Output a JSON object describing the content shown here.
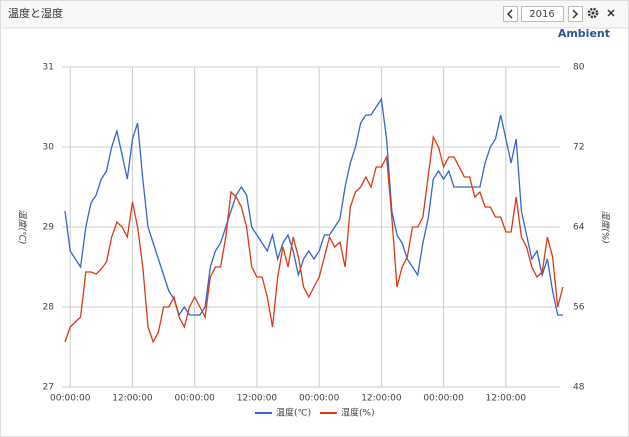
{
  "header": {
    "title": "温度と湿度",
    "year": "2016"
  },
  "brand": "Ambient",
  "chart_data": {
    "type": "line",
    "y_label": "温度(℃)",
    "y2_label": "湿度(%)",
    "x": [
      -1,
      0,
      1,
      2,
      3,
      4,
      5,
      6,
      7,
      8,
      9,
      10,
      11,
      12,
      13,
      14,
      15,
      16,
      17,
      18,
      19,
      20,
      21,
      22,
      23,
      24,
      25,
      26,
      27,
      28,
      29,
      30,
      31,
      32,
      33,
      34,
      35,
      36,
      37,
      38,
      39,
      40,
      41,
      42,
      43,
      44,
      45,
      46,
      47,
      48,
      49,
      50,
      51,
      52,
      53,
      54,
      55,
      56,
      57,
      58,
      59,
      60,
      61,
      62,
      63,
      64,
      65,
      66,
      67,
      68,
      69,
      70,
      71,
      72,
      73,
      74,
      75,
      76,
      77,
      78,
      79,
      80,
      81,
      82,
      83,
      84,
      85,
      86,
      87,
      88,
      89,
      90,
      91,
      92,
      93,
      94,
      95
    ],
    "xlim": [
      -1.2,
      95.4
    ],
    "xticks": [
      {
        "value": 0,
        "label": "00:00:00"
      },
      {
        "value": 12,
        "label": "12:00:00"
      },
      {
        "value": 24,
        "label": "00:00:00"
      },
      {
        "value": 36,
        "label": "12:00:00"
      },
      {
        "value": 48,
        "label": "00:00:00"
      },
      {
        "value": 60,
        "label": "12:00:00"
      },
      {
        "value": 72,
        "label": "00:00:00"
      },
      {
        "value": 84,
        "label": "12:00:00"
      }
    ],
    "ylim": [
      27,
      31
    ],
    "yticks": [
      27,
      28,
      29,
      30,
      31
    ],
    "y2lim": [
      48,
      80
    ],
    "y2ticks": [
      48,
      56,
      64,
      72,
      80
    ],
    "grid": true,
    "legend": "bottom",
    "series": [
      {
        "name": "温度(℃)",
        "color": "#3366cc",
        "values": [
          29.2,
          28.7,
          28.6,
          28.5,
          29.0,
          29.3,
          29.4,
          29.6,
          29.7,
          30.0,
          30.2,
          29.9,
          29.6,
          30.1,
          30.3,
          29.6,
          29.0,
          28.8,
          28.6,
          28.4,
          28.2,
          28.1,
          27.9,
          28.0,
          27.9,
          27.9,
          27.9,
          28.0,
          28.5,
          28.7,
          28.8,
          29.0,
          29.2,
          29.4,
          29.5,
          29.4,
          29.0,
          28.9,
          28.8,
          28.7,
          28.9,
          28.6,
          28.8,
          28.9,
          28.7,
          28.4,
          28.6,
          28.7,
          28.6,
          28.7,
          28.9,
          28.9,
          29.0,
          29.1,
          29.5,
          29.8,
          30.0,
          30.3,
          30.4,
          30.4,
          30.5,
          30.6,
          30.1,
          29.2,
          28.9,
          28.8,
          28.6,
          28.5,
          28.4,
          28.8,
          29.1,
          29.6,
          29.7,
          29.6,
          29.7,
          29.5,
          29.5,
          29.5,
          29.5,
          29.5,
          29.5,
          29.8,
          30.0,
          30.1,
          30.4,
          30.1,
          29.8,
          30.1,
          29.2,
          28.9,
          28.6,
          28.7,
          28.4,
          28.6,
          28.2,
          27.9,
          27.9
        ]
      },
      {
        "name": "湿度(%)",
        "color": "#dc3912",
        "axis": "y2",
        "values": [
          52.5,
          54,
          54.5,
          55,
          59.5,
          59.5,
          59.3,
          59.8,
          60.5,
          63,
          64.5,
          64,
          63,
          66.5,
          64,
          60,
          54,
          52.5,
          53.5,
          56,
          56,
          57,
          55,
          54,
          56,
          57,
          56,
          55,
          59,
          60,
          60,
          63,
          67.5,
          67,
          66,
          64,
          60,
          59,
          59,
          57,
          54,
          59,
          62,
          60,
          63,
          61,
          58,
          57,
          58,
          59,
          61,
          63,
          62,
          62.5,
          60,
          66,
          67.5,
          68,
          69,
          68,
          70,
          70,
          71,
          65,
          58,
          60,
          61,
          64,
          64,
          65,
          69,
          73,
          72,
          70,
          71,
          71,
          70,
          69,
          69,
          67,
          67.5,
          66,
          66,
          65,
          65,
          63.5,
          63.5,
          67,
          63,
          62,
          60,
          59,
          59.5,
          63,
          61,
          56,
          58
        ]
      }
    ]
  }
}
